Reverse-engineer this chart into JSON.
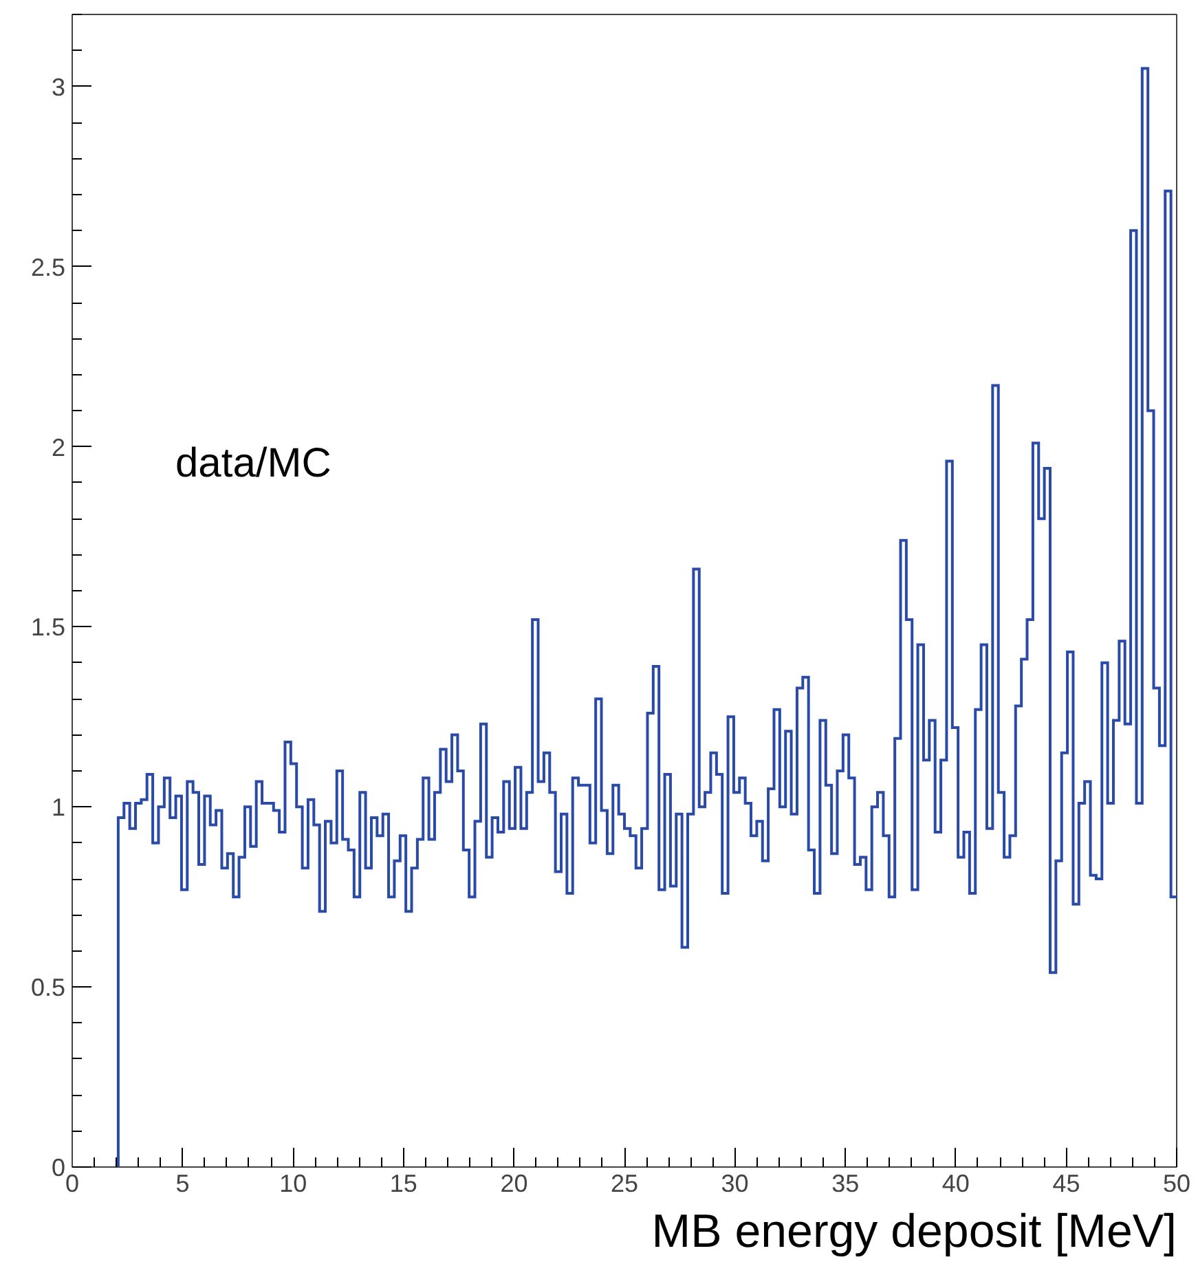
{
  "chart_data": {
    "type": "histogram",
    "xlabel": "MB energy deposit [MeV]",
    "annotations": [
      "data/MC"
    ],
    "color": "#2a4aa8",
    "xlim": [
      0,
      50
    ],
    "xticks": [
      0,
      5,
      10,
      15,
      20,
      25,
      30,
      35,
      40,
      45,
      50
    ],
    "ylim": [
      0,
      3.2
    ],
    "yticks": [
      0,
      0.5,
      1,
      1.5,
      2,
      2.5,
      3
    ],
    "grid": false,
    "bins": [
      2.083,
      2.344,
      2.604,
      2.865,
      3.125,
      3.385,
      3.646,
      3.906,
      4.167,
      4.427,
      4.688,
      4.948,
      5.208,
      5.469,
      5.729,
      5.99,
      6.25,
      6.51,
      6.771,
      7.031,
      7.292,
      7.552,
      7.813,
      8.073,
      8.333,
      8.594,
      8.854,
      9.115,
      9.375,
      9.635,
      9.896,
      10.156,
      10.417,
      10.677,
      10.938,
      11.198,
      11.458,
      11.719,
      11.979,
      12.24,
      12.5,
      12.76,
      13.021,
      13.281,
      13.542,
      13.802,
      14.063,
      14.323,
      14.583,
      14.844,
      15.104,
      15.365,
      15.625,
      15.885,
      16.146,
      16.406,
      16.667,
      16.927,
      17.188,
      17.448,
      17.708,
      17.969,
      18.229,
      18.49,
      18.75,
      19.01,
      19.271,
      19.531,
      19.792,
      20.052,
      20.313,
      20.573,
      20.833,
      21.094,
      21.354,
      21.615,
      21.875,
      22.135,
      22.396,
      22.656,
      22.917,
      23.177,
      23.438,
      23.698,
      23.958,
      24.219,
      24.479,
      24.74,
      25,
      25.26,
      25.521,
      25.781,
      26.042,
      26.302,
      26.563,
      26.823,
      27.083,
      27.344,
      27.604,
      27.865,
      28.125,
      28.385,
      28.646,
      28.906,
      29.167,
      29.427,
      29.688,
      29.948,
      30.208,
      30.469,
      30.729,
      30.99,
      31.25,
      31.51,
      31.771,
      32.031,
      32.292,
      32.552,
      32.813,
      33.073,
      33.333,
      33.594,
      33.854,
      34.115,
      34.375,
      34.635,
      34.896,
      35.156,
      35.417,
      35.677,
      35.938,
      36.198,
      36.458,
      36.719,
      36.979,
      37.24,
      37.5,
      37.76,
      38.021,
      38.281,
      38.542,
      38.802,
      39.063,
      39.323,
      39.583,
      39.844,
      40.104,
      40.365,
      40.625,
      40.885,
      41.146,
      41.406,
      41.667,
      41.927,
      42.188,
      42.448,
      42.708,
      42.969,
      43.229,
      43.49,
      43.75,
      44.01,
      44.271,
      44.531,
      44.792,
      45.052,
      45.313,
      45.573,
      45.833,
      46.094,
      46.354,
      46.615,
      46.875,
      47.135,
      47.396,
      47.656,
      47.917,
      48.177,
      48.438,
      48.698,
      48.958,
      49.219,
      49.479,
      49.74,
      50
    ],
    "values": [
      0.97,
      1.01,
      0.94,
      1.01,
      1.02,
      1.09,
      0.9,
      1.0,
      1.08,
      0.97,
      1.03,
      0.77,
      1.07,
      1.04,
      0.84,
      1.03,
      0.95,
      0.99,
      0.83,
      0.87,
      0.75,
      0.86,
      1.0,
      0.89,
      1.07,
      1.01,
      1.01,
      0.99,
      0.93,
      1.18,
      1.12,
      1.0,
      0.83,
      1.02,
      0.95,
      0.71,
      0.96,
      0.9,
      1.1,
      0.91,
      0.88,
      0.75,
      1.04,
      0.83,
      0.97,
      0.92,
      0.98,
      0.75,
      0.85,
      0.92,
      0.71,
      0.83,
      0.91,
      1.08,
      0.91,
      1.04,
      1.16,
      1.07,
      1.2,
      1.1,
      0.88,
      0.75,
      0.96,
      1.23,
      0.86,
      0.97,
      0.93,
      1.07,
      0.94,
      1.11,
      0.94,
      1.04,
      1.52,
      1.07,
      1.15,
      1.04,
      0.82,
      0.98,
      0.76,
      1.08,
      1.06,
      1.06,
      0.9,
      1.3,
      0.99,
      0.87,
      1.06,
      0.98,
      0.94,
      0.92,
      0.83,
      0.94,
      1.26,
      1.39,
      0.77,
      1.09,
      0.78,
      0.98,
      0.61,
      0.98,
      1.66,
      1.0,
      1.04,
      1.15,
      1.09,
      0.76,
      1.25,
      1.04,
      1.08,
      1.01,
      0.92,
      0.96,
      0.85,
      1.05,
      1.27,
      1.0,
      1.21,
      0.98,
      1.33,
      1.36,
      0.88,
      0.76,
      1.24,
      1.06,
      0.87,
      1.1,
      1.2,
      1.08,
      0.84,
      0.86,
      0.77,
      1.0,
      1.04,
      0.92,
      0.75,
      1.19,
      1.74,
      1.52,
      0.77,
      1.45,
      1.13,
      1.24,
      0.93,
      1.13,
      1.96,
      1.22,
      0.86,
      0.93,
      0.76,
      1.27,
      1.45,
      0.94,
      2.17,
      1.04,
      0.86,
      0.92,
      1.28,
      1.41,
      1.52,
      2.01,
      1.8,
      1.94,
      0.54,
      0.85,
      1.15,
      1.43,
      0.73,
      1.01,
      1.07,
      0.81,
      0.8,
      1.4,
      1.01,
      1.24,
      1.46,
      1.23,
      2.6,
      1.01,
      3.05,
      2.1,
      1.33,
      1.17,
      2.71,
      0.75
    ]
  }
}
